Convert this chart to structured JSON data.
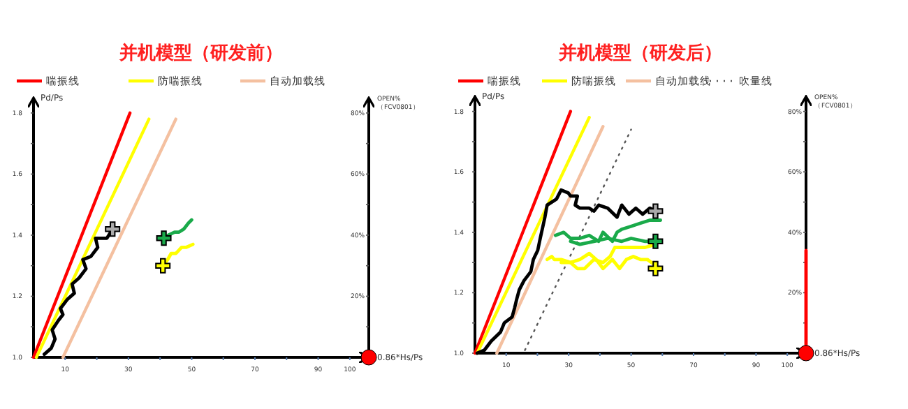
{
  "chart_data": [
    {
      "type": "line",
      "title": "并机模型（研发前）",
      "xlabel": "0.86*Hs/Ps",
      "ylabel": "Pd/Ps",
      "y2label": "OPEN%（FCV0801）",
      "legend": "top",
      "xlim": [
        0,
        106
      ],
      "xticks": [
        {
          "value": 10,
          "label": "10"
        },
        {
          "value": 20,
          "label": null
        },
        {
          "value": 30,
          "label": "30"
        },
        {
          "value": 40,
          "label": null
        },
        {
          "value": 50,
          "label": "50"
        },
        {
          "value": 60,
          "label": null
        },
        {
          "value": 70,
          "label": "70"
        },
        {
          "value": 80,
          "label": null
        },
        {
          "value": 90,
          "label": "90"
        },
        {
          "value": 100,
          "label": "100"
        }
      ],
      "ylim": [
        1.0,
        1.85
      ],
      "yticks": [
        {
          "value": 1.0,
          "label": "1.0"
        },
        {
          "value": 1.1,
          "label": null
        },
        {
          "value": 1.2,
          "label": "1.2"
        },
        {
          "value": 1.3,
          "label": null
        },
        {
          "value": 1.4,
          "label": "1.4"
        },
        {
          "value": 1.5,
          "label": null
        },
        {
          "value": 1.6,
          "label": "1.6"
        },
        {
          "value": 1.7,
          "label": null
        },
        {
          "value": 1.8,
          "label": "1.8"
        }
      ],
      "y2lim": [
        0,
        85
      ],
      "y2ticks": [
        {
          "value": 10,
          "label": null
        },
        {
          "value": 20,
          "label": "20%"
        },
        {
          "value": 30,
          "label": null
        },
        {
          "value": 40,
          "label": "40%"
        },
        {
          "value": 50,
          "label": null
        },
        {
          "value": 60,
          "label": "60%"
        },
        {
          "value": 70,
          "label": null
        },
        {
          "value": 80,
          "label": "80%"
        }
      ],
      "series": [
        {
          "name": "喘振线",
          "color": "#ff0000",
          "x": [
            0,
            30.5
          ],
          "values": [
            1.0,
            1.8
          ]
        },
        {
          "name": "防喘振线",
          "color": "#ffff00",
          "x": [
            0.9,
            36.5
          ],
          "values": [
            1.0,
            1.78
          ]
        },
        {
          "name": "自动加载线",
          "color": "#f4c0a0",
          "x": [
            9.3,
            45
          ],
          "values": [
            1.0,
            1.78
          ]
        },
        {
          "color": "#000000",
          "x": [
            3.4,
            5.6,
            6.8,
            5.9,
            7.8,
            9.3,
            8.5,
            10.7,
            12.9,
            12.2,
            14.4,
            16.6,
            15.6,
            18.1,
            20.3,
            19.6,
            23.2,
            25.0
          ],
          "values": [
            1.01,
            1.03,
            1.06,
            1.09,
            1.12,
            1.14,
            1.16,
            1.19,
            1.21,
            1.24,
            1.26,
            1.29,
            1.32,
            1.33,
            1.36,
            1.39,
            1.39,
            1.42
          ]
        },
        {
          "color": "#1aaa4a",
          "x": [
            41.2,
            42.6,
            44.6,
            46.0,
            47.5,
            49.0,
            50.0
          ],
          "values": [
            1.39,
            1.4,
            1.41,
            1.41,
            1.42,
            1.44,
            1.45
          ]
        },
        {
          "color": "#ffff00",
          "x": [
            40.9,
            42.4,
            43.5,
            45.0,
            46.8,
            48.2,
            50.4
          ],
          "values": [
            1.3,
            1.32,
            1.34,
            1.34,
            1.36,
            1.36,
            1.37
          ]
        },
        {
          "type": "scatter",
          "marker": "cross",
          "colors": [
            "#aaaaaa",
            "#1aaa4a",
            "#ffff00"
          ],
          "x": [
            25.0,
            41.2,
            40.9
          ],
          "values": [
            1.42,
            1.39,
            1.3
          ]
        },
        {
          "type": "scatter",
          "marker": "circle",
          "axis": "y2",
          "color": "#ff0000",
          "x": [
            106
          ],
          "values": [
            0
          ]
        }
      ]
    },
    {
      "type": "line",
      "title": "并机模型（研发后）",
      "xlabel": "0.86*Hs/Ps",
      "ylabel": "Pd/Ps",
      "y2label": "OPEN%（FCV0801）",
      "legend": "top",
      "xlim": [
        0,
        106
      ],
      "xticks": [
        {
          "value": 10,
          "label": "10"
        },
        {
          "value": 20,
          "label": null
        },
        {
          "value": 30,
          "label": "30"
        },
        {
          "value": 40,
          "label": null
        },
        {
          "value": 50,
          "label": "50"
        },
        {
          "value": 60,
          "label": null
        },
        {
          "value": 70,
          "label": "70"
        },
        {
          "value": 80,
          "label": null
        },
        {
          "value": 90,
          "label": "90"
        },
        {
          "value": 100,
          "label": "100"
        }
      ],
      "ylim": [
        1.0,
        1.85
      ],
      "yticks": [
        {
          "value": 1.0,
          "label": "1.0"
        },
        {
          "value": 1.1,
          "label": null
        },
        {
          "value": 1.2,
          "label": "1.2"
        },
        {
          "value": 1.3,
          "label": null
        },
        {
          "value": 1.4,
          "label": "1.4"
        },
        {
          "value": 1.5,
          "label": null
        },
        {
          "value": 1.6,
          "label": "1.6"
        },
        {
          "value": 1.7,
          "label": null
        },
        {
          "value": 1.8,
          "label": "1.8"
        }
      ],
      "y2lim": [
        0,
        85
      ],
      "y2ticks": [
        {
          "value": 10,
          "label": null
        },
        {
          "value": 20,
          "label": "20%"
        },
        {
          "value": 30,
          "label": null
        },
        {
          "value": 40,
          "label": "40%"
        },
        {
          "value": 50,
          "label": null
        },
        {
          "value": 60,
          "label": "60%"
        },
        {
          "value": 70,
          "label": null
        },
        {
          "value": 80,
          "label": "80%"
        }
      ],
      "series": [
        {
          "name": "喘振线",
          "color": "#ff0000",
          "x": [
            0,
            30.6
          ],
          "values": [
            1.0,
            1.8
          ]
        },
        {
          "name": "防喘振线",
          "color": "#ffff00",
          "x": [
            0.7,
            36.6
          ],
          "values": [
            1.0,
            1.78
          ]
        },
        {
          "name": "自动加载线",
          "color": "#f4c0a0",
          "x": [
            7,
            41
          ],
          "values": [
            1.0,
            1.75
          ]
        },
        {
          "name": "吹量线",
          "color": "#555555",
          "line_style": "dotted",
          "x": [
            16,
            50
          ],
          "values": [
            1.01,
            1.74
          ]
        },
        {
          "color": "#000000",
          "x": [
            0.7,
            3.0,
            5.2,
            8.2,
            9.4,
            11.9,
            12.7,
            13.4,
            14.2,
            15.7,
            17.9,
            18.7,
            20.1,
            20.9,
            22.4,
            23.1,
            26.1,
            27.6,
            29.9,
            30.6,
            32.8,
            32.1,
            33.6,
            36.6,
            38.1,
            39.6,
            42.5,
            45.5,
            47.0,
            49.3,
            51.5,
            53.7,
            56.0,
            57.8
          ],
          "values": [
            1.0,
            1.01,
            1.04,
            1.07,
            1.1,
            1.12,
            1.15,
            1.18,
            1.21,
            1.24,
            1.27,
            1.31,
            1.34,
            1.38,
            1.45,
            1.49,
            1.51,
            1.54,
            1.53,
            1.52,
            1.52,
            1.49,
            1.48,
            1.48,
            1.47,
            1.49,
            1.48,
            1.45,
            1.49,
            1.46,
            1.48,
            1.46,
            1.48,
            1.47
          ]
        },
        {
          "color": "#1aaa4a",
          "x": [
            25.8,
            28.4,
            30.6,
            33.6,
            36.6,
            39.6,
            41.0,
            44.0,
            45.5,
            47.0,
            50.0,
            53.0,
            56.0,
            59.4
          ],
          "values": [
            1.39,
            1.4,
            1.38,
            1.38,
            1.39,
            1.37,
            1.4,
            1.37,
            1.4,
            1.41,
            1.42,
            1.43,
            1.44,
            1.44
          ]
        },
        {
          "color": "#1aaa4a",
          "x": [
            30.6,
            33.6,
            38.1,
            42.5,
            47.0,
            50.0,
            54.5,
            57.8
          ],
          "values": [
            1.37,
            1.36,
            1.37,
            1.38,
            1.37,
            1.38,
            1.37,
            1.37
          ]
        },
        {
          "color": "#ffff00",
          "x": [
            23.1,
            24.6,
            25.4,
            27.6,
            30.6,
            32.8,
            35.1,
            38.1,
            41.0,
            43.3,
            44.8,
            47.0,
            50.0,
            54.5,
            57.8
          ],
          "values": [
            1.31,
            1.32,
            1.31,
            1.31,
            1.3,
            1.28,
            1.28,
            1.31,
            1.3,
            1.32,
            1.35,
            1.35,
            1.35,
            1.35,
            1.36
          ]
        },
        {
          "color": "#ffff00",
          "x": [
            27.6,
            30.6,
            33.6,
            36.6,
            38.8,
            41.0,
            44.0,
            46.3,
            48.5,
            50.7,
            53.0,
            55.2,
            57.8
          ],
          "values": [
            1.3,
            1.3,
            1.31,
            1.33,
            1.31,
            1.28,
            1.31,
            1.28,
            1.31,
            1.32,
            1.31,
            1.31,
            1.29
          ]
        },
        {
          "type": "scatter",
          "marker": "cross",
          "colors": [
            "#aaaaaa",
            "#1aaa4a",
            "#ffff00"
          ],
          "x": [
            57.8,
            57.8,
            57.8
          ],
          "values": [
            1.47,
            1.37,
            1.28
          ]
        },
        {
          "axis": "y2",
          "color": "#ff0000",
          "x": [
            106,
            106
          ],
          "values": [
            0,
            34
          ]
        },
        {
          "type": "scatter",
          "marker": "circle",
          "axis": "y2",
          "color": "#ff0000",
          "x": [
            106
          ],
          "values": [
            0
          ]
        }
      ]
    }
  ]
}
